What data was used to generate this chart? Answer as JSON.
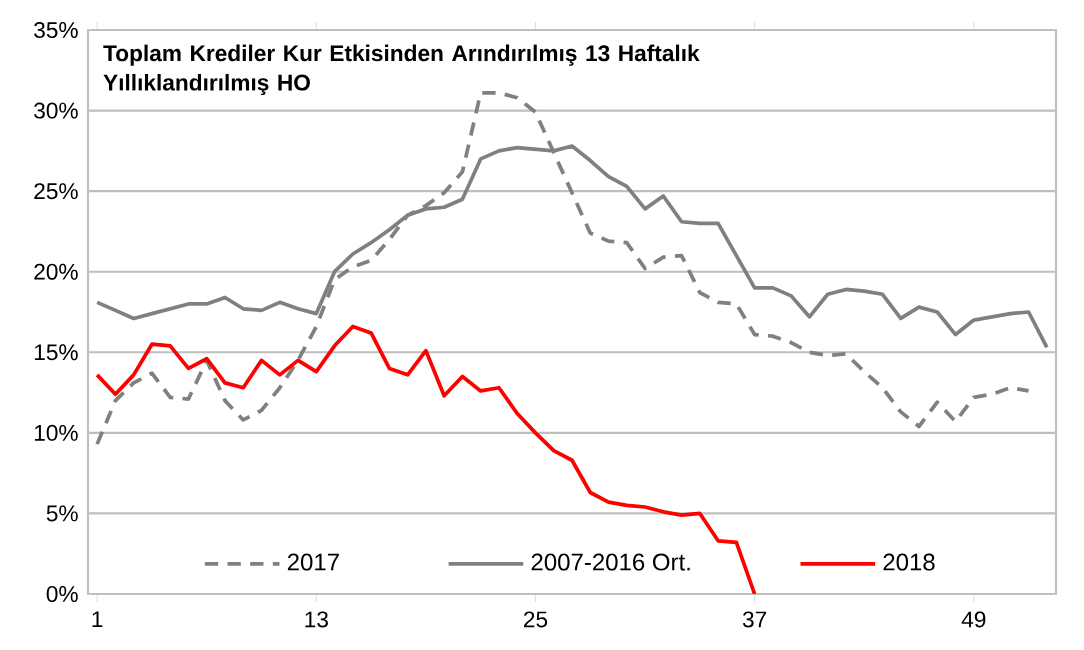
{
  "chart_data": {
    "type": "line",
    "title": "Toplam Krediler Kur Etkisinden Arındırılmış 13 Haftalık Yıllıklandırılmış HO",
    "x": [
      1,
      2,
      3,
      4,
      5,
      6,
      7,
      8,
      9,
      10,
      11,
      12,
      13,
      14,
      15,
      16,
      17,
      18,
      19,
      20,
      21,
      22,
      23,
      24,
      25,
      26,
      27,
      28,
      29,
      30,
      31,
      32,
      33,
      34,
      35,
      36,
      37,
      38,
      39,
      40,
      41,
      42,
      43,
      44,
      45,
      46,
      47,
      48,
      49,
      50,
      51,
      52,
      53
    ],
    "xlim": [
      0.5,
      53.5
    ],
    "xticks": [
      1,
      13,
      25,
      37,
      49
    ],
    "ylim": [
      0,
      35
    ],
    "yticks": [
      {
        "value": 0,
        "label": "0%"
      },
      {
        "value": 5,
        "label": "5%"
      },
      {
        "value": 10,
        "label": "10%"
      },
      {
        "value": 15,
        "label": "15%"
      },
      {
        "value": 20,
        "label": "20%"
      },
      {
        "value": 25,
        "label": "25%"
      },
      {
        "value": 30,
        "label": "30%"
      },
      {
        "value": 35,
        "label": "35%"
      }
    ],
    "grid": "y",
    "legend": "bottom",
    "marker": "none",
    "series": [
      {
        "name": "2017",
        "color": "#808080",
        "line_style": "dashed",
        "values": [
          9.3,
          12.0,
          13.1,
          13.7,
          12.2,
          12.1,
          14.5,
          12.0,
          10.8,
          11.4,
          12.8,
          14.5,
          16.6,
          19.5,
          20.3,
          20.7,
          22.0,
          23.5,
          24.1,
          24.9,
          26.2,
          31.1,
          31.1,
          30.8,
          29.9,
          27.4,
          24.9,
          22.4,
          21.9,
          21.8,
          20.2,
          20.9,
          21.0,
          18.7,
          18.1,
          18.0,
          16.1,
          16.0,
          15.6,
          15.0,
          14.8,
          14.9,
          13.8,
          12.8,
          11.3,
          10.4,
          11.9,
          10.7,
          12.2,
          12.4,
          12.8,
          12.6,
          null
        ]
      },
      {
        "name": "2007-2016 Ort.",
        "color": "#808080",
        "line_style": "solid",
        "values": [
          18.1,
          17.6,
          17.1,
          17.4,
          17.7,
          18.0,
          18.0,
          18.4,
          17.7,
          17.6,
          18.1,
          17.7,
          17.4,
          20.0,
          21.1,
          21.8,
          22.6,
          23.5,
          23.9,
          24.0,
          24.5,
          27.0,
          27.5,
          27.7,
          27.6,
          27.5,
          27.8,
          26.9,
          25.9,
          25.3,
          23.9,
          24.7,
          23.1,
          23.0,
          23.0,
          21.0,
          19.0,
          19.0,
          18.5,
          17.2,
          18.6,
          18.9,
          18.8,
          18.6,
          17.1,
          17.8,
          17.5,
          16.1,
          17.0,
          17.2,
          17.4,
          17.5,
          15.3
        ]
      },
      {
        "name": "2018",
        "color": "#ff0000",
        "line_style": "solid",
        "values": [
          13.6,
          12.4,
          13.6,
          15.5,
          15.4,
          14.0,
          14.6,
          13.1,
          12.8,
          14.5,
          13.6,
          14.5,
          13.8,
          15.4,
          16.6,
          16.2,
          14.0,
          13.6,
          15.1,
          12.3,
          13.5,
          12.6,
          12.8,
          11.2,
          10.0,
          8.9,
          8.3,
          6.3,
          5.7,
          5.5,
          5.4,
          5.1,
          4.9,
          5.0,
          3.3,
          3.2,
          0,
          null,
          null,
          null,
          null,
          null,
          null,
          null,
          null,
          null,
          null,
          null,
          null,
          null,
          null,
          null,
          null
        ]
      }
    ]
  }
}
